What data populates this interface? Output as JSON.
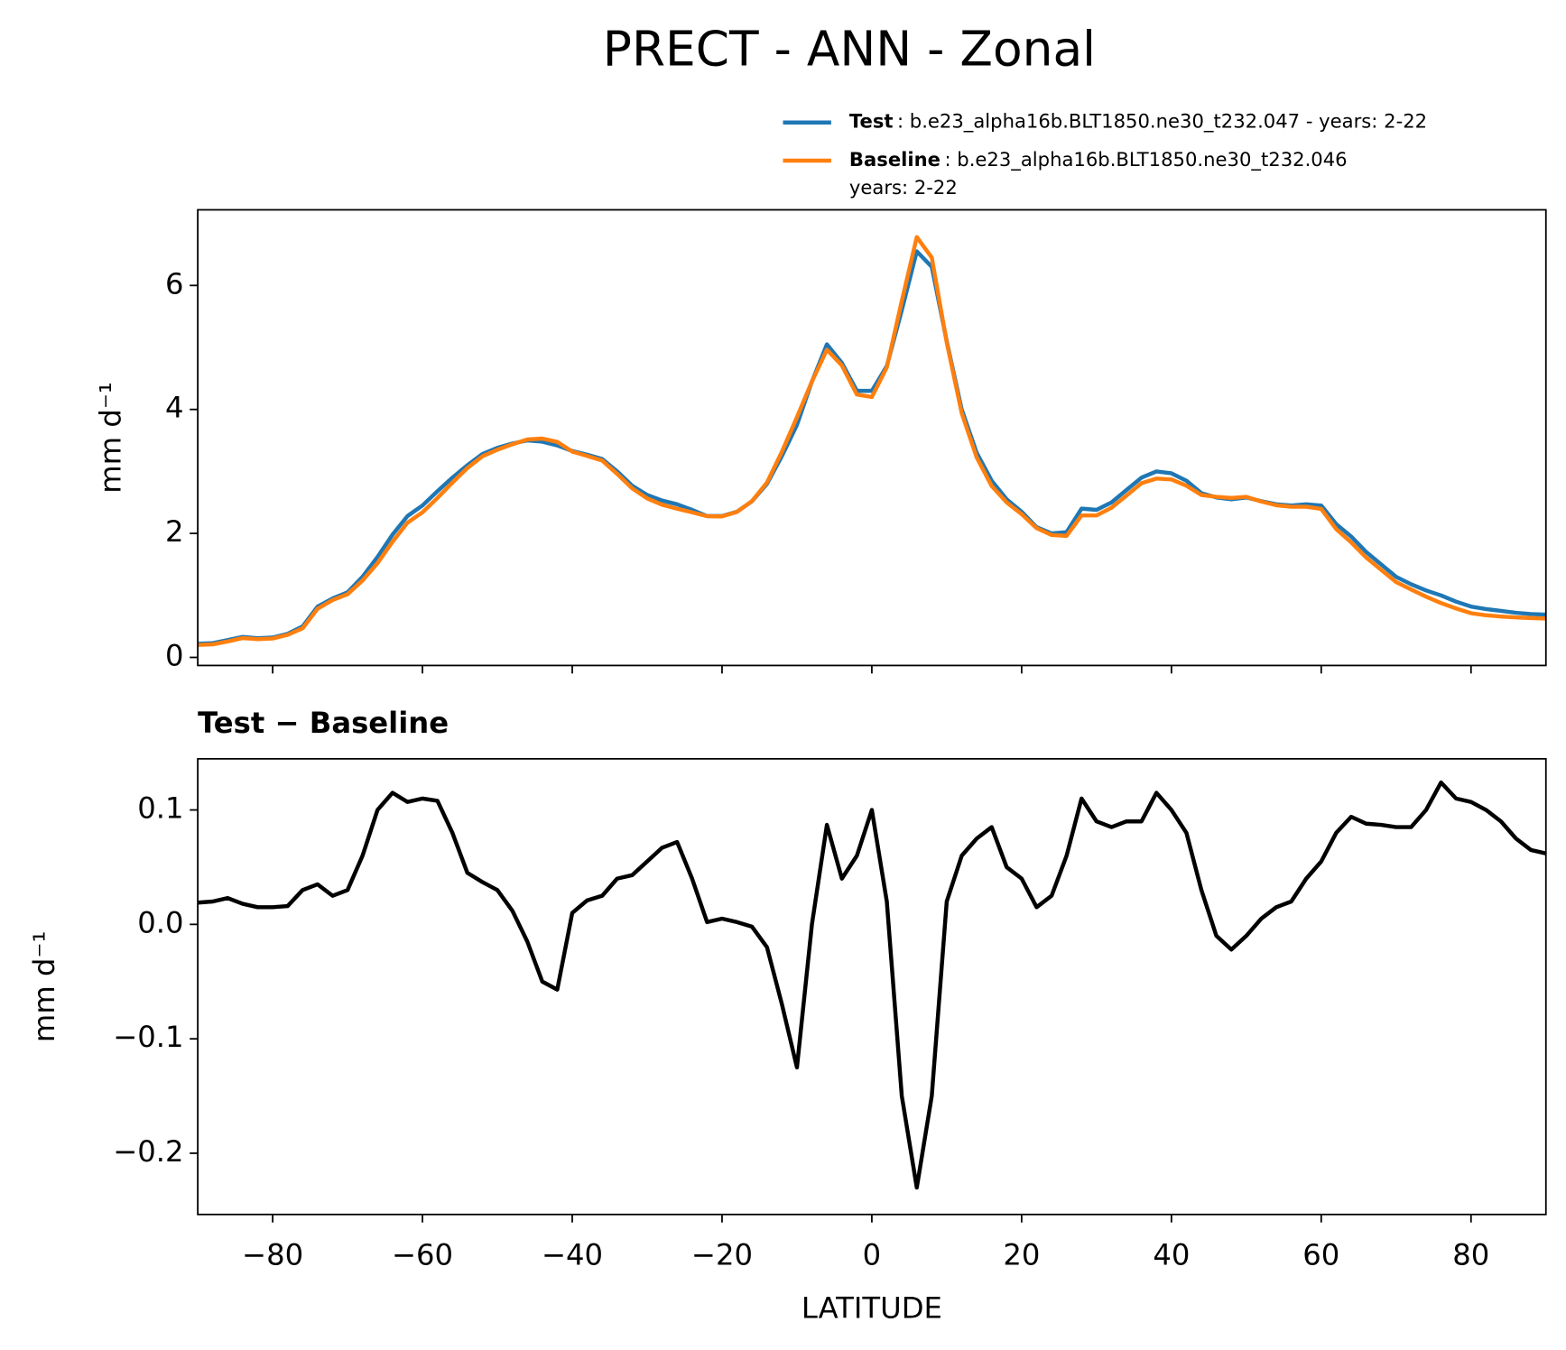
{
  "title": "PRECT - ANN - Zonal",
  "chart_data": [
    {
      "type": "line",
      "ylabel": "mm d⁻¹",
      "x": [
        -90,
        -88,
        -86,
        -84,
        -82,
        -80,
        -78,
        -76,
        -74,
        -72,
        -70,
        -68,
        -66,
        -64,
        -62,
        -60,
        -58,
        -56,
        -54,
        -52,
        -50,
        -48,
        -46,
        -44,
        -42,
        -40,
        -38,
        -36,
        -34,
        -32,
        -30,
        -28,
        -26,
        -24,
        -22,
        -20,
        -18,
        -16,
        -14,
        -12,
        -10,
        -8,
        -6,
        -4,
        -2,
        0,
        2,
        4,
        6,
        8,
        10,
        12,
        14,
        16,
        18,
        20,
        22,
        24,
        26,
        28,
        30,
        32,
        34,
        36,
        38,
        40,
        42,
        44,
        46,
        48,
        50,
        52,
        54,
        56,
        58,
        60,
        62,
        64,
        66,
        68,
        70,
        72,
        74,
        76,
        78,
        80,
        82,
        84,
        86,
        88,
        90
      ],
      "series": [
        {
          "name": "Test",
          "description": [
            ": b.e23_alpha16b.BLT1850.ne30_t232.047 - years: 2-22"
          ],
          "color": "#1f77b4",
          "values": [
            0.22,
            0.23,
            0.28,
            0.33,
            0.31,
            0.32,
            0.38,
            0.5,
            0.82,
            0.95,
            1.05,
            1.3,
            1.62,
            1.98,
            2.28,
            2.45,
            2.68,
            2.9,
            3.1,
            3.28,
            3.38,
            3.45,
            3.5,
            3.48,
            3.42,
            3.33,
            3.27,
            3.2,
            3.0,
            2.77,
            2.62,
            2.53,
            2.47,
            2.38,
            2.28,
            2.28,
            2.35,
            2.52,
            2.8,
            3.25,
            3.75,
            4.45,
            5.05,
            4.75,
            4.3,
            4.3,
            4.7,
            5.6,
            6.55,
            6.3,
            5.1,
            4.0,
            3.3,
            2.85,
            2.55,
            2.35,
            2.1,
            2.0,
            2.02,
            2.4,
            2.38,
            2.5,
            2.7,
            2.9,
            3.0,
            2.97,
            2.85,
            2.65,
            2.58,
            2.55,
            2.58,
            2.52,
            2.47,
            2.45,
            2.47,
            2.45,
            2.15,
            1.95,
            1.7,
            1.5,
            1.3,
            1.18,
            1.08,
            1.0,
            0.9,
            0.82,
            0.78,
            0.75,
            0.72,
            0.7,
            0.69
          ]
        },
        {
          "name": "Baseline",
          "description": [
            ": b.e23_alpha16b.BLT1850.ne30_t232.046",
            "years: 2-22"
          ],
          "color": "#ff7f0e",
          "values": [
            0.201,
            0.21,
            0.257,
            0.312,
            0.295,
            0.305,
            0.364,
            0.47,
            0.785,
            0.925,
            1.02,
            1.24,
            1.52,
            1.865,
            2.173,
            2.34,
            2.572,
            2.82,
            3.055,
            3.243,
            3.35,
            3.438,
            3.515,
            3.53,
            3.477,
            3.32,
            3.249,
            3.175,
            2.96,
            2.727,
            2.565,
            2.463,
            2.398,
            2.34,
            2.278,
            2.275,
            2.348,
            2.522,
            2.82,
            3.32,
            3.875,
            4.45,
            4.963,
            4.71,
            4.24,
            4.2,
            4.68,
            5.75,
            6.78,
            6.45,
            5.08,
            3.94,
            3.225,
            2.765,
            2.5,
            2.31,
            2.085,
            1.975,
            1.96,
            2.29,
            2.29,
            2.415,
            2.61,
            2.81,
            2.885,
            2.87,
            2.77,
            2.62,
            2.59,
            2.572,
            2.59,
            2.515,
            2.455,
            2.43,
            2.43,
            2.395,
            2.07,
            1.856,
            1.612,
            1.413,
            1.215,
            1.095,
            0.98,
            0.876,
            0.79,
            0.713,
            0.68,
            0.66,
            0.645,
            0.635,
            0.628
          ]
        }
      ],
      "xlim": [
        -90,
        90
      ],
      "xticks": [
        -80,
        -60,
        -40,
        -20,
        0,
        20,
        40,
        60,
        80
      ],
      "ylim": [
        -0.13,
        7.22
      ],
      "yticks": [
        0,
        2,
        4,
        6
      ]
    },
    {
      "type": "line",
      "title": "Test − Baseline",
      "xlabel": "LATITUDE",
      "ylabel": "mm d⁻¹",
      "x": [
        -90,
        -88,
        -86,
        -84,
        -82,
        -80,
        -78,
        -76,
        -74,
        -72,
        -70,
        -68,
        -66,
        -64,
        -62,
        -60,
        -58,
        -56,
        -54,
        -52,
        -50,
        -48,
        -46,
        -44,
        -42,
        -40,
        -38,
        -36,
        -34,
        -32,
        -30,
        -28,
        -26,
        -24,
        -22,
        -20,
        -18,
        -16,
        -14,
        -12,
        -10,
        -8,
        -6,
        -4,
        -2,
        0,
        2,
        4,
        6,
        8,
        10,
        12,
        14,
        16,
        18,
        20,
        22,
        24,
        26,
        28,
        30,
        32,
        34,
        36,
        38,
        40,
        42,
        44,
        46,
        48,
        50,
        52,
        54,
        56,
        58,
        60,
        62,
        64,
        66,
        68,
        70,
        72,
        74,
        76,
        78,
        80,
        82,
        84,
        86,
        88,
        90
      ],
      "series": [
        {
          "color": "#000000",
          "values": [
            0.019,
            0.02,
            0.023,
            0.018,
            0.015,
            0.015,
            0.016,
            0.03,
            0.035,
            0.025,
            0.03,
            0.06,
            0.1,
            0.115,
            0.107,
            0.11,
            0.108,
            0.08,
            0.045,
            0.037,
            0.03,
            0.012,
            -0.015,
            -0.05,
            -0.057,
            0.01,
            0.021,
            0.025,
            0.04,
            0.043,
            0.055,
            0.067,
            0.072,
            0.04,
            0.002,
            0.005,
            0.002,
            -0.002,
            -0.02,
            -0.07,
            -0.125,
            0.0,
            0.087,
            0.04,
            0.06,
            0.1,
            0.02,
            -0.15,
            -0.23,
            -0.15,
            0.02,
            0.06,
            0.075,
            0.085,
            0.05,
            0.04,
            0.015,
            0.025,
            0.06,
            0.11,
            0.09,
            0.085,
            0.09,
            0.09,
            0.115,
            0.1,
            0.08,
            0.03,
            -0.01,
            -0.022,
            -0.01,
            0.005,
            0.015,
            0.02,
            0.04,
            0.055,
            0.08,
            0.094,
            0.088,
            0.087,
            0.085,
            0.085,
            0.1,
            0.124,
            0.11,
            0.107,
            0.1,
            0.09,
            0.075,
            0.065,
            0.062
          ]
        }
      ],
      "xlim": [
        -90,
        90
      ],
      "xticks": [
        {
          "value": -80,
          "label": "−80"
        },
        {
          "value": -60,
          "label": "−60"
        },
        {
          "value": -40,
          "label": "−40"
        },
        {
          "value": -20,
          "label": "−20"
        },
        0,
        20,
        40,
        60,
        80
      ],
      "ylim": [
        -0.2535,
        0.1447
      ],
      "yticks": [
        {
          "value": -0.2,
          "label": "−0.2"
        },
        {
          "value": -0.1,
          "label": "−0.1"
        },
        {
          "value": 0,
          "label": "0.0"
        },
        0.1
      ]
    }
  ]
}
